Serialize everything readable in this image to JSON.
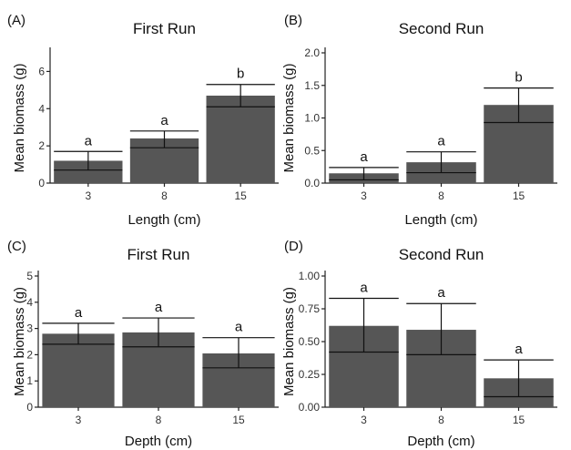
{
  "chart_data": [
    {
      "type": "bar",
      "panel_label": "(A)",
      "title": "First Run",
      "xlabel": "Length (cm)",
      "ylabel": "Mean biomass  (g)",
      "categories": [
        "3",
        "8",
        "15"
      ],
      "values": [
        1.2,
        2.4,
        4.7
      ],
      "error_low": [
        0.7,
        1.9,
        4.1
      ],
      "error_high": [
        1.7,
        2.8,
        5.3
      ],
      "sig_letters": [
        "a",
        "a",
        "b"
      ],
      "ylim": [
        0,
        7
      ],
      "yticks": [
        "0",
        "2",
        "4",
        "6"
      ],
      "grid": false
    },
    {
      "type": "bar",
      "panel_label": "(B)",
      "title": "Second Run",
      "xlabel": "Length (cm)",
      "ylabel": "Mean biomass  (g)",
      "categories": [
        "3",
        "8",
        "15"
      ],
      "values": [
        0.15,
        0.32,
        1.2
      ],
      "error_low": [
        0.05,
        0.16,
        0.93
      ],
      "error_high": [
        0.24,
        0.48,
        1.46
      ],
      "sig_letters": [
        "a",
        "a",
        "b"
      ],
      "ylim": [
        0,
        2.0
      ],
      "yticks": [
        "0.0",
        "0.5",
        "1.0",
        "1.5",
        "2.0"
      ],
      "grid": false
    },
    {
      "type": "bar",
      "panel_label": "(C)",
      "title": "First Run",
      "xlabel": "Depth (cm)",
      "ylabel": "Mean biomass  (g)",
      "categories": [
        "3",
        "8",
        "15"
      ],
      "values": [
        2.8,
        2.85,
        2.05
      ],
      "error_low": [
        2.4,
        2.3,
        1.5
      ],
      "error_high": [
        3.2,
        3.4,
        2.65
      ],
      "sig_letters": [
        "a",
        "a",
        "a"
      ],
      "ylim": [
        0,
        5
      ],
      "yticks": [
        "0",
        "1",
        "2",
        "3",
        "4",
        "5"
      ],
      "grid": false
    },
    {
      "type": "bar",
      "panel_label": "(D)",
      "title": "Second Run",
      "xlabel": "Depth (cm)",
      "ylabel": "Mean biomass  (g)",
      "categories": [
        "3",
        "8",
        "15"
      ],
      "values": [
        0.62,
        0.59,
        0.22
      ],
      "error_low": [
        0.42,
        0.4,
        0.08
      ],
      "error_high": [
        0.83,
        0.79,
        0.36
      ],
      "sig_letters": [
        "a",
        "a",
        "a"
      ],
      "ylim": [
        0,
        1.0
      ],
      "yticks": [
        "0.00",
        "0.25",
        "0.50",
        "0.75",
        "1.00"
      ],
      "grid": false
    }
  ]
}
